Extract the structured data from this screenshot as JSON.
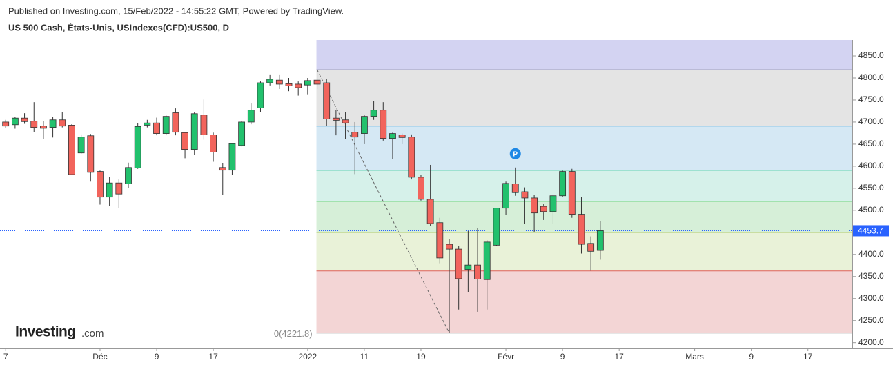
{
  "header": {
    "published": "Published on Investing.com, 15/Feb/2022 - 14:55:22 GMT, Powered by TradingView.",
    "title": "US 500 Cash, États-Unis, USIndexes(CFD):US500, D"
  },
  "logo": {
    "brand": "Investing",
    "suffix": ".com"
  },
  "chart_data": {
    "type": "candlestick",
    "ohlc": [
      [
        4700,
        4705,
        4686,
        4691
      ],
      [
        4694,
        4712,
        4685,
        4709
      ],
      [
        4709,
        4720,
        4696,
        4701
      ],
      [
        4702,
        4745,
        4677,
        4688
      ],
      [
        4691,
        4703,
        4662,
        4686
      ],
      [
        4688,
        4712,
        4665,
        4705
      ],
      [
        4705,
        4722,
        4688,
        4691
      ],
      [
        4693,
        4695,
        4580,
        4581
      ],
      [
        4630,
        4672,
        4628,
        4666
      ],
      [
        4669,
        4673,
        4565,
        4586
      ],
      [
        4588,
        4590,
        4513,
        4530
      ],
      [
        4530,
        4575,
        4510,
        4562
      ],
      [
        4562,
        4570,
        4505,
        4537
      ],
      [
        4560,
        4608,
        4550,
        4597
      ],
      [
        4596,
        4697,
        4594,
        4690
      ],
      [
        4693,
        4705,
        4688,
        4698
      ],
      [
        4698,
        4710,
        4670,
        4674
      ],
      [
        4674,
        4715,
        4670,
        4713
      ],
      [
        4721,
        4731,
        4670,
        4677
      ],
      [
        4676,
        4678,
        4618,
        4638
      ],
      [
        4638,
        4722,
        4625,
        4719
      ],
      [
        4716,
        4751,
        4660,
        4671
      ],
      [
        4671,
        4676,
        4610,
        4632
      ],
      [
        4597,
        4607,
        4535,
        4591
      ],
      [
        4591,
        4653,
        4580,
        4651
      ],
      [
        4647,
        4702,
        4645,
        4700
      ],
      [
        4700,
        4742,
        4695,
        4727
      ],
      [
        4732,
        4792,
        4722,
        4789
      ],
      [
        4789,
        4808,
        4783,
        4797
      ],
      [
        4795,
        4808,
        4775,
        4786
      ],
      [
        4787,
        4800,
        4770,
        4782
      ],
      [
        4786,
        4792,
        4760,
        4778
      ],
      [
        4784,
        4800,
        4763,
        4794
      ],
      [
        4795,
        4818.6,
        4775,
        4786
      ],
      [
        4789,
        4797,
        4692,
        4707
      ],
      [
        4709,
        4727,
        4670,
        4704
      ],
      [
        4705,
        4722,
        4662,
        4698
      ],
      [
        4677,
        4700,
        4582,
        4666
      ],
      [
        4674,
        4716,
        4650,
        4713
      ],
      [
        4713,
        4748,
        4705,
        4727
      ],
      [
        4727,
        4745,
        4658,
        4663
      ],
      [
        4663,
        4676,
        4617,
        4674
      ],
      [
        4671,
        4674,
        4650,
        4665
      ],
      [
        4666,
        4672,
        4570,
        4575
      ],
      [
        4575,
        4580,
        4522,
        4525
      ],
      [
        4525,
        4603,
        4465,
        4470
      ],
      [
        4472,
        4483,
        4380,
        4392
      ],
      [
        4423,
        4435,
        4221.8,
        4412
      ],
      [
        4412,
        4420,
        4275,
        4345
      ],
      [
        4366,
        4453,
        4315,
        4376
      ],
      [
        4376,
        4460,
        4270,
        4344
      ],
      [
        4343,
        4432,
        4275,
        4428
      ],
      [
        4421,
        4506,
        4420,
        4505
      ],
      [
        4505,
        4565,
        4490,
        4561
      ],
      [
        4560,
        4597,
        4533,
        4540
      ],
      [
        4542,
        4552,
        4470,
        4528
      ],
      [
        4528,
        4535,
        4450,
        4494
      ],
      [
        4509,
        4515,
        4478,
        4497
      ],
      [
        4497,
        4536,
        4470,
        4533
      ],
      [
        4533,
        4590,
        4530,
        4588
      ],
      [
        4588,
        4594,
        4483,
        4491
      ],
      [
        4491,
        4530,
        4402,
        4423
      ],
      [
        4425,
        4441,
        4363,
        4407
      ],
      [
        4409,
        4476,
        4388,
        4453.7
      ]
    ],
    "up_color": "#22c16d",
    "down_color": "#f2645c",
    "ylim": [
      4187,
      4886
    ],
    "yticks": [
      {
        "value": 4200,
        "label": "4200.0"
      },
      {
        "value": 4250,
        "label": "4250.0"
      },
      {
        "value": 4300,
        "label": "4300.0"
      },
      {
        "value": 4350,
        "label": "4350.0"
      },
      {
        "value": 4400,
        "label": "4400.0"
      },
      {
        "value": 4450,
        "label": "4450.0"
      },
      {
        "value": 4500,
        "label": "4500.0"
      },
      {
        "value": 4550,
        "label": "4550.0"
      },
      {
        "value": 4600,
        "label": "4600.0"
      },
      {
        "value": 4650,
        "label": "4650.0"
      },
      {
        "value": 4700,
        "label": "4700.0"
      },
      {
        "value": 4750,
        "label": "4750.0"
      },
      {
        "value": 4800,
        "label": "4800.0"
      },
      {
        "value": 4850,
        "label": "4850.0"
      }
    ],
    "xlim": [
      -0.6,
      89.7
    ],
    "xticks": [
      {
        "value": 0,
        "label": "7"
      },
      {
        "value": 10,
        "label": "Déc"
      },
      {
        "value": 16,
        "label": "9"
      },
      {
        "value": 22,
        "label": "17"
      },
      {
        "value": 32,
        "label": "2022"
      },
      {
        "value": 38,
        "label": "11"
      },
      {
        "value": 44,
        "label": "19"
      },
      {
        "value": 53,
        "label": "Févr"
      },
      {
        "value": 59,
        "label": "9"
      },
      {
        "value": 65,
        "label": "17"
      },
      {
        "value": 73,
        "label": "Mars"
      },
      {
        "value": 79,
        "label": "9"
      },
      {
        "value": 85,
        "label": "17"
      }
    ],
    "fib": {
      "levels": [
        4221.8,
        4362.6,
        4449.8,
        4520.2,
        4590.6,
        4690.9,
        4818.6
      ],
      "fill_colors": [
        "#f3d5d5",
        "#e9f2d8",
        "#d6efd8",
        "#d6f1ea",
        "#d5e8f4",
        "#e4e4e4",
        "#d3d3f2"
      ],
      "line_colors": [
        "#9a9a9a",
        "#e06058",
        "#a9c86a",
        "#4ccd68",
        "#3ec6a6",
        "#4aa3d8",
        "#8f8fa8"
      ],
      "zero_label": "0(4221.8)"
    },
    "last_price": 4453.7,
    "last_price_color": "#2962ff",
    "pivot_label": "P"
  }
}
